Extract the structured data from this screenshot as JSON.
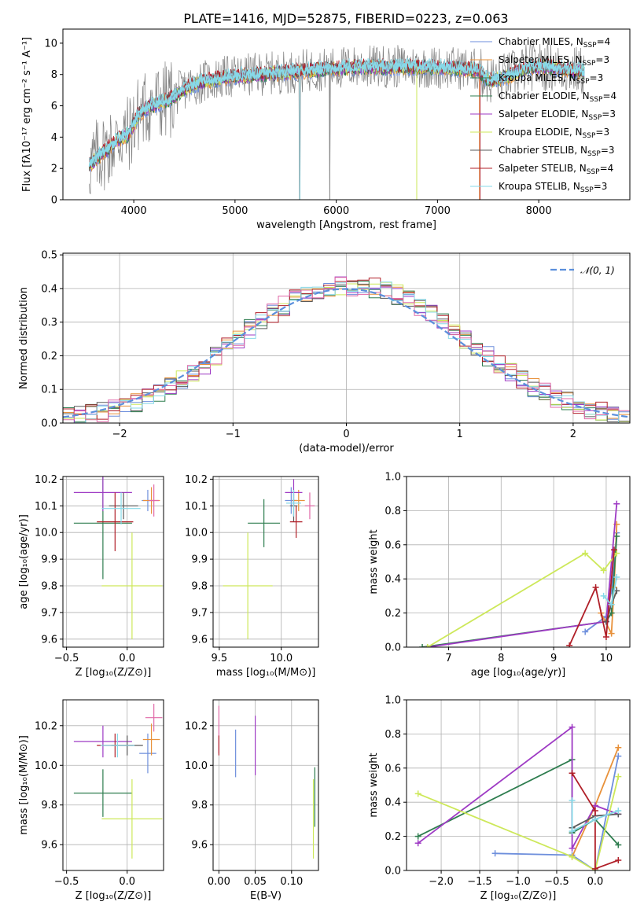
{
  "figure": {
    "title": "PLATE=1416, MJD=52875, FIBERID=0223, z=0.063"
  },
  "colors": {
    "palette": [
      "#6e8fdc",
      "#e8913a",
      "#2e7d4f",
      "#9e3ac4",
      "#cde85a",
      "#5a5a5a",
      "#b01f28",
      "#87d9e8",
      "#e06aa8",
      "#888888"
    ],
    "data": "#808080",
    "normal_curve": "#5b8fdc"
  },
  "chart_data": [
    {
      "id": "spectrum",
      "type": "line",
      "xlabel": "wavelength [Angstrom, rest frame]",
      "ylabel": "Flux [fλ10⁻¹⁷ erg cm⁻² s⁻¹ A⁻¹]",
      "xlim": [
        3300,
        8900
      ],
      "ylim": [
        0,
        10.9
      ],
      "xticks": [
        "4000",
        "5000",
        "6000",
        "7000",
        "8000"
      ],
      "yticks": [
        "0",
        "2",
        "4",
        "6",
        "8",
        "10"
      ],
      "continuum_wavelength": [
        3560,
        3650,
        3750,
        3850,
        3950,
        4050,
        4150,
        4250,
        4350,
        4500,
        4650,
        4800,
        5000,
        5200,
        5400,
        5600,
        5800,
        6000,
        6200,
        6400,
        6600,
        6800,
        7000,
        7200,
        7400,
        7500,
        7700,
        7900,
        8100,
        8300,
        8450
      ],
      "continuum_flux": [
        2.2,
        2.8,
        3.3,
        3.9,
        4.2,
        5.5,
        6.0,
        6.2,
        6.4,
        7.1,
        7.5,
        7.7,
        7.9,
        8.0,
        8.1,
        8.2,
        8.3,
        8.4,
        8.5,
        8.5,
        8.5,
        8.5,
        8.45,
        8.4,
        8.3,
        7.6,
        7.9,
        8.5,
        8.5,
        8.3,
        8.2
      ],
      "legend": [
        {
          "label": "Chabrier MILES, N",
          "sub": "SSP",
          "tail": "=4"
        },
        {
          "label": "Salpeter MILES, N",
          "sub": "SSP",
          "tail": "=3"
        },
        {
          "label": "Kroupa MILES, N",
          "sub": "SSP",
          "tail": "=3"
        },
        {
          "label": "Chabrier ELODIE, N",
          "sub": "SSP",
          "tail": "=4"
        },
        {
          "label": "Salpeter ELODIE, N",
          "sub": "SSP",
          "tail": "=3"
        },
        {
          "label": "Kroupa ELODIE, N",
          "sub": "SSP",
          "tail": "=3"
        },
        {
          "label": "Chabrier STELIB, N",
          "sub": "SSP",
          "tail": "=3"
        },
        {
          "label": "Salpeter STELIB, N",
          "sub": "SSP",
          "tail": "=4"
        },
        {
          "label": "Kroupa STELIB, N",
          "sub": "SSP",
          "tail": "=3"
        }
      ]
    },
    {
      "id": "residuals",
      "type": "line",
      "xlabel": "(data-model)/error",
      "ylabel": "Normed distribution",
      "xlim": [
        -2.5,
        2.5
      ],
      "ylim": [
        0,
        0.505
      ],
      "xticks": [
        "−2",
        "−1",
        "0",
        "1",
        "2"
      ],
      "yticks": [
        "0.0",
        "0.1",
        "0.2",
        "0.3",
        "0.4",
        "0.5"
      ],
      "bin_width": 0.1,
      "legend": "𝒩(0, 1)",
      "histogram_profile": [
        0.02,
        0.022,
        0.028,
        0.033,
        0.04,
        0.05,
        0.06,
        0.073,
        0.088,
        0.105,
        0.125,
        0.148,
        0.172,
        0.198,
        0.225,
        0.252,
        0.278,
        0.303,
        0.327,
        0.348,
        0.367,
        0.382,
        0.394,
        0.402,
        0.406,
        0.408,
        0.406,
        0.402,
        0.394,
        0.382,
        0.366,
        0.347,
        0.325,
        0.301,
        0.276,
        0.25,
        0.224,
        0.198,
        0.173,
        0.15,
        0.128,
        0.108,
        0.09,
        0.075,
        0.062,
        0.05,
        0.041,
        0.034,
        0.028,
        0.024
      ]
    },
    {
      "id": "age-vs-Z",
      "type": "scatter",
      "xlabel": "Z [log₁₀(Z/Z⊙)]",
      "ylabel": "age  [log₁₀(age/yr)]",
      "xlim": [
        -0.53,
        0.3
      ],
      "ylim": [
        9.57,
        10.21
      ],
      "xticks": [
        -0.5,
        0.0
      ],
      "yticks": [
        9.6,
        9.7,
        9.8,
        9.9,
        10.0,
        10.1,
        10.2
      ],
      "points": [
        {
          "x": 0.17,
          "y": 10.12,
          "xe": 0.05,
          "ye": 0.04,
          "c": 0
        },
        {
          "x": 0.2,
          "y": 10.12,
          "xe": 0.07,
          "ye": 0.05,
          "c": 1
        },
        {
          "x": -0.2,
          "y": 10.035,
          "xe": 0.24,
          "ye": 0.21,
          "c": 2
        },
        {
          "x": -0.2,
          "y": 10.15,
          "xe": 0.24,
          "ye": 0.07,
          "c": 3
        },
        {
          "x": 0.04,
          "y": 9.8,
          "xe": 0.25,
          "ye": 0.2,
          "c": 4
        },
        {
          "x": -0.03,
          "y": 10.1,
          "xe": 0.12,
          "ye": 0.05,
          "c": 5
        },
        {
          "x": -0.1,
          "y": 10.04,
          "xe": 0.15,
          "ye": 0.11,
          "c": 6
        },
        {
          "x": -0.05,
          "y": 10.09,
          "xe": 0.16,
          "ye": 0.06,
          "c": 7
        },
        {
          "x": 0.22,
          "y": 10.12,
          "xe": 0.04,
          "ye": 0.06,
          "c": 8
        }
      ]
    },
    {
      "id": "age-vs-mass",
      "type": "scatter",
      "xlabel": "mass [log₁₀(M/M⊙)]",
      "xlim": [
        9.45,
        10.3
      ],
      "ylim": [
        9.57,
        10.21
      ],
      "xticks": [
        9.5,
        10.0
      ],
      "yticks": [
        9.6,
        9.7,
        9.8,
        9.9,
        10.0,
        10.1,
        10.2
      ],
      "points": [
        {
          "x": 10.08,
          "y": 10.12,
          "xe": 0.05,
          "ye": 0.05,
          "c": 0
        },
        {
          "x": 10.14,
          "y": 10.12,
          "xe": 0.05,
          "ye": 0.04,
          "c": 1
        },
        {
          "x": 9.86,
          "y": 10.035,
          "xe": 0.13,
          "ye": 0.09,
          "c": 2
        },
        {
          "x": 10.1,
          "y": 10.15,
          "xe": 0.07,
          "ye": 0.05,
          "c": 3
        },
        {
          "x": 9.73,
          "y": 9.8,
          "xe": 0.2,
          "ye": 0.2,
          "c": 4
        },
        {
          "x": 10.1,
          "y": 10.1,
          "xe": 0.03,
          "ye": 0.06,
          "c": 5
        },
        {
          "x": 10.12,
          "y": 10.04,
          "xe": 0.05,
          "ye": 0.06,
          "c": 6
        },
        {
          "x": 10.1,
          "y": 10.11,
          "xe": 0.06,
          "ye": 0.05,
          "c": 7
        },
        {
          "x": 10.23,
          "y": 10.1,
          "xe": 0.04,
          "ye": 0.05,
          "c": 8
        }
      ]
    },
    {
      "id": "mass-weight-vs-age",
      "type": "line",
      "xlabel": "age  [log₁₀(age/yr)]",
      "ylabel": "mass weight",
      "xlim": [
        6.2,
        10.45
      ],
      "ylim": [
        0,
        1
      ],
      "xticks": [
        7,
        8,
        9,
        10
      ],
      "yticks": [
        0.0,
        0.2,
        0.4,
        0.6,
        0.8,
        1.0
      ],
      "series": [
        {
          "c": 0,
          "x": [
            9.6,
            10.0,
            10.1,
            10.2
          ],
          "y": [
            0.09,
            0.18,
            0.33,
            0.67
          ]
        },
        {
          "c": 1,
          "x": [
            9.9,
            10.1,
            10.15,
            10.2
          ],
          "y": [
            0.2,
            0.08,
            0.35,
            0.72
          ]
        },
        {
          "c": 2,
          "x": [
            6.5,
            10.0,
            10.1,
            10.2
          ],
          "y": [
            0.0,
            0.15,
            0.2,
            0.65
          ]
        },
        {
          "c": 3,
          "x": [
            6.6,
            10.0,
            10.2
          ],
          "y": [
            0.0,
            0.15,
            0.84
          ]
        },
        {
          "c": 4,
          "x": [
            6.6,
            9.6,
            9.95,
            10.2
          ],
          "y": [
            0.0,
            0.55,
            0.45,
            0.55
          ]
        },
        {
          "c": 5,
          "x": [
            10.0,
            10.1,
            10.2
          ],
          "y": [
            0.15,
            0.25,
            0.33
          ]
        },
        {
          "c": 6,
          "x": [
            9.3,
            9.8,
            10.0,
            10.15
          ],
          "y": [
            0.01,
            0.35,
            0.06,
            0.57
          ]
        },
        {
          "c": 7,
          "x": [
            9.95,
            10.1,
            10.2
          ],
          "y": [
            0.3,
            0.25,
            0.41
          ]
        }
      ]
    },
    {
      "id": "mass-vs-Z",
      "type": "scatter",
      "xlabel": "Z [log₁₀(Z/Z⊙)]",
      "ylabel": "mass [log₁₀(M/M⊙)]",
      "xlim": [
        -0.53,
        0.3
      ],
      "ylim": [
        9.47,
        10.33
      ],
      "xticks": [
        -0.5,
        0.0
      ],
      "yticks": [
        9.6,
        9.8,
        10.0,
        10.2
      ],
      "points": [
        {
          "x": 0.17,
          "y": 10.06,
          "xe": 0.07,
          "ye": 0.1,
          "c": 0
        },
        {
          "x": 0.2,
          "y": 10.13,
          "xe": 0.07,
          "ye": 0.08,
          "c": 1
        },
        {
          "x": -0.2,
          "y": 9.86,
          "xe": 0.24,
          "ye": 0.12,
          "c": 2
        },
        {
          "x": -0.2,
          "y": 10.12,
          "xe": 0.24,
          "ye": 0.08,
          "c": 3
        },
        {
          "x": 0.04,
          "y": 9.73,
          "xe": 0.25,
          "ye": 0.2,
          "c": 4
        },
        {
          "x": 0.0,
          "y": 10.1,
          "xe": 0.13,
          "ye": 0.05,
          "c": 5
        },
        {
          "x": -0.1,
          "y": 10.1,
          "xe": 0.15,
          "ye": 0.06,
          "c": 6
        },
        {
          "x": -0.08,
          "y": 10.1,
          "xe": 0.14,
          "ye": 0.06,
          "c": 7
        },
        {
          "x": 0.22,
          "y": 10.24,
          "xe": 0.07,
          "ye": 0.07,
          "c": 8
        }
      ]
    },
    {
      "id": "mass-vs-EBV",
      "type": "scatter",
      "xlabel": "E(B-V)",
      "xlim": [
        -0.008,
        0.137
      ],
      "ylim": [
        9.47,
        10.33
      ],
      "xticks": [
        "0.00",
        "0.05",
        "0.10"
      ],
      "yticks": [
        9.6,
        9.8,
        10.0,
        10.2
      ],
      "points": [
        {
          "x": 0.0,
          "y": 10.18,
          "ye": 0.12,
          "c": 8
        },
        {
          "x": 0.0,
          "y": 10.1,
          "ye": 0.05,
          "c": 6
        },
        {
          "x": 0.023,
          "y": 10.06,
          "ye": 0.12,
          "c": 0
        },
        {
          "x": 0.05,
          "y": 10.1,
          "ye": 0.15,
          "c": 3
        },
        {
          "x": 0.13,
          "y": 9.73,
          "ye": 0.2,
          "c": 4
        },
        {
          "x": 0.132,
          "y": 9.84,
          "ye": 0.15,
          "c": 2
        }
      ]
    },
    {
      "id": "mass-weight-vs-Z",
      "type": "line",
      "xlabel": "Z [log₁₀(Z/Z⊙)]",
      "ylabel": "mass weight",
      "xlim": [
        -2.45,
        0.45
      ],
      "ylim": [
        0,
        1
      ],
      "xticks": [
        "−2.0",
        "−1.5",
        "−1.0",
        "−0.5",
        "0.0"
      ],
      "yticks": [
        0.0,
        0.2,
        0.4,
        0.6,
        0.8,
        1.0
      ],
      "series": [
        {
          "c": 0,
          "x": [
            -1.3,
            -0.3,
            0.0,
            0.3
          ],
          "y": [
            0.1,
            0.09,
            0.0,
            0.67
          ]
        },
        {
          "c": 1,
          "x": [
            -0.3,
            0.0,
            0.3
          ],
          "y": [
            0.08,
            0.38,
            0.72
          ]
        },
        {
          "c": 2,
          "x": [
            -2.3,
            -0.3,
            -0.3,
            0.0,
            0.3
          ],
          "y": [
            0.2,
            0.65,
            0.22,
            0.3,
            0.15
          ]
        },
        {
          "c": 3,
          "x": [
            -2.3,
            -0.3,
            -0.3,
            0.0,
            0.3
          ],
          "y": [
            0.16,
            0.84,
            0.13,
            0.38,
            0.33
          ]
        },
        {
          "c": 4,
          "x": [
            -2.3,
            -0.3,
            0.0,
            0.3
          ],
          "y": [
            0.45,
            0.08,
            0.0,
            0.55
          ]
        },
        {
          "c": 5,
          "x": [
            -0.3,
            0.0,
            0.3
          ],
          "y": [
            0.25,
            0.32,
            0.33
          ]
        },
        {
          "c": 6,
          "x": [
            -0.3,
            0.0,
            0.0,
            0.3
          ],
          "y": [
            0.57,
            0.35,
            0.01,
            0.06
          ]
        },
        {
          "c": 7,
          "x": [
            -0.3,
            -0.3,
            0.0,
            0.3
          ],
          "y": [
            0.41,
            0.23,
            0.3,
            0.35
          ]
        }
      ]
    }
  ]
}
